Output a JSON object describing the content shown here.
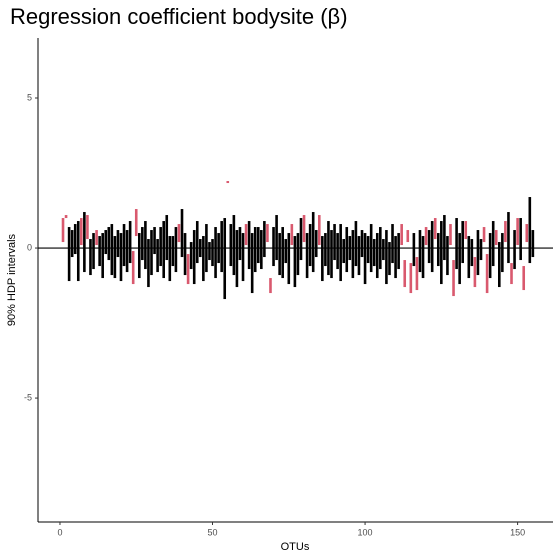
{
  "chart_data": {
    "type": "interval",
    "title": "Regression coefficient bodysite (β)",
    "x_label": "OTUs",
    "y_label": "90% HDP intervals",
    "color": "#000000",
    "highlight_color": "#d9596e",
    "hline": 0,
    "xlim": [
      -7.2,
      161.6
    ],
    "ylim": [
      -9.13,
      7.0
    ],
    "xticks": [
      0,
      50,
      100,
      150
    ],
    "yticks": [
      -5,
      0,
      5
    ],
    "x": [
      1,
      2,
      3,
      4,
      5,
      6,
      7,
      8,
      9,
      10,
      11,
      12,
      13,
      14,
      15,
      16,
      17,
      18,
      19,
      20,
      21,
      22,
      23,
      24,
      25,
      26,
      27,
      28,
      29,
      30,
      31,
      32,
      33,
      34,
      35,
      36,
      37,
      38,
      39,
      40,
      41,
      42,
      43,
      44,
      45,
      46,
      47,
      48,
      49,
      50,
      51,
      52,
      53,
      54,
      55,
      56,
      57,
      58,
      59,
      60,
      61,
      62,
      63,
      64,
      65,
      66,
      67,
      68,
      69,
      70,
      71,
      72,
      73,
      74,
      75,
      76,
      77,
      78,
      79,
      80,
      81,
      82,
      83,
      84,
      85,
      86,
      87,
      88,
      89,
      90,
      91,
      92,
      93,
      94,
      95,
      96,
      97,
      98,
      99,
      100,
      101,
      102,
      103,
      104,
      105,
      106,
      107,
      108,
      109,
      110,
      111,
      112,
      113,
      114,
      115,
      116,
      117,
      118,
      119,
      120,
      121,
      122,
      123,
      124,
      125,
      126,
      127,
      128,
      129,
      130,
      131,
      132,
      133,
      134,
      135,
      136,
      137,
      138,
      139,
      140,
      141,
      142,
      143,
      144,
      145,
      146,
      147,
      148,
      149,
      150,
      151,
      152,
      153,
      154,
      155
    ],
    "lower": [
      0.2,
      1.0,
      -1.1,
      -0.3,
      -0.2,
      -1.1,
      0.1,
      -0.8,
      0.3,
      -0.9,
      -0.7,
      0.1,
      -0.6,
      -1.0,
      -0.2,
      -0.4,
      -0.9,
      -1.0,
      -0.3,
      -1.1,
      -0.6,
      -0.8,
      -0.5,
      -1.2,
      0.4,
      -1.0,
      -0.4,
      -0.7,
      -1.3,
      -0.9,
      -0.2,
      -0.8,
      -0.6,
      -1.0,
      -0.4,
      -1.1,
      -0.6,
      -0.8,
      0.2,
      -0.3,
      -0.9,
      -1.2,
      -0.7,
      -1.2,
      -0.5,
      -0.3,
      -1.1,
      -0.8,
      -0.4,
      -0.6,
      -1.0,
      -0.5,
      -0.8,
      -1.7,
      2.2,
      -0.6,
      -0.9,
      -1.3,
      -0.4,
      -1.1,
      0.1,
      -0.7,
      -1.5,
      -0.8,
      -0.5,
      -0.7,
      -0.3,
      0.2,
      -1.5,
      -0.6,
      -0.4,
      -0.9,
      -1.0,
      -0.5,
      -1.2,
      0.1,
      -1.3,
      -0.9,
      -0.4,
      0.2,
      -1.0,
      -0.6,
      -0.8,
      -0.3,
      0.1,
      -1.1,
      -0.6,
      -0.9,
      -1.0,
      -0.4,
      -0.7,
      -1.1,
      -0.5,
      -0.8,
      -0.4,
      -1.0,
      -0.6,
      -0.9,
      -0.3,
      -1.2,
      -0.5,
      -0.8,
      -0.6,
      -1.0,
      -0.7,
      -0.4,
      -1.2,
      -0.9,
      -0.5,
      -1.0,
      -0.7,
      0.1,
      -1.3,
      0.2,
      -1.5,
      -0.6,
      -1.4,
      -0.8,
      -1.0,
      0.1,
      -0.5,
      -0.8,
      0.3,
      -0.6,
      -1.2,
      -0.4,
      -0.9,
      0.1,
      -1.6,
      -0.7,
      -1.2,
      -0.5,
      0.3,
      -1.0,
      -0.6,
      -1.3,
      -0.9,
      -0.4,
      0.2,
      -1.5,
      -1.0,
      -0.6,
      0.1,
      -1.3,
      -0.8,
      0.2,
      -0.5,
      -1.2,
      -0.7,
      0.1,
      -0.4,
      -1.4,
      0.2,
      -0.5,
      -0.3
    ],
    "upper": [
      1.0,
      1.1,
      0.7,
      0.6,
      0.8,
      0.9,
      1.0,
      1.2,
      1.1,
      0.3,
      0.5,
      0.6,
      0.4,
      0.5,
      0.6,
      0.7,
      0.8,
      0.4,
      0.6,
      0.5,
      0.8,
      0.6,
      0.9,
      -0.1,
      1.3,
      0.5,
      0.7,
      0.9,
      0.3,
      0.6,
      0.7,
      0.3,
      0.7,
      0.9,
      1.1,
      0.4,
      0.4,
      0.7,
      0.8,
      1.3,
      0.5,
      -0.2,
      0.2,
      0.6,
      0.9,
      0.3,
      0.4,
      0.8,
      0.2,
      0.3,
      0.7,
      0.5,
      0.9,
      1.0,
      2.2,
      0.8,
      1.1,
      0.6,
      0.7,
      0.5,
      0.8,
      0.9,
      0.5,
      0.7,
      0.7,
      0.6,
      0.9,
      0.8,
      -1.0,
      0.7,
      1.1,
      0.5,
      0.7,
      0.3,
      0.5,
      0.8,
      0.4,
      0.5,
      1.0,
      1.1,
      0.5,
      0.8,
      1.2,
      0.6,
      1.1,
      0.4,
      0.5,
      0.9,
      0.6,
      0.8,
      0.5,
      0.8,
      0.3,
      0.7,
      0.4,
      0.6,
      0.9,
      0.4,
      0.6,
      0.5,
      0.4,
      0.8,
      0.3,
      0.5,
      0.7,
      0.3,
      0.6,
      0.2,
      0.8,
      0.4,
      0.5,
      0.8,
      -0.4,
      0.6,
      -0.5,
      0.5,
      -0.3,
      0.6,
      0.4,
      0.7,
      0.6,
      0.9,
      1.0,
      0.5,
      0.9,
      1.1,
      0.4,
      0.8,
      -0.4,
      1.0,
      0.5,
      0.9,
      0.9,
      0.4,
      0.3,
      -0.3,
      0.6,
      0.3,
      0.7,
      -0.2,
      0.5,
      0.9,
      0.6,
      0.2,
      0.5,
      0.9,
      1.2,
      -0.5,
      0.6,
      1.0,
      1.0,
      -0.6,
      0.8,
      1.7,
      0.6
    ]
  }
}
